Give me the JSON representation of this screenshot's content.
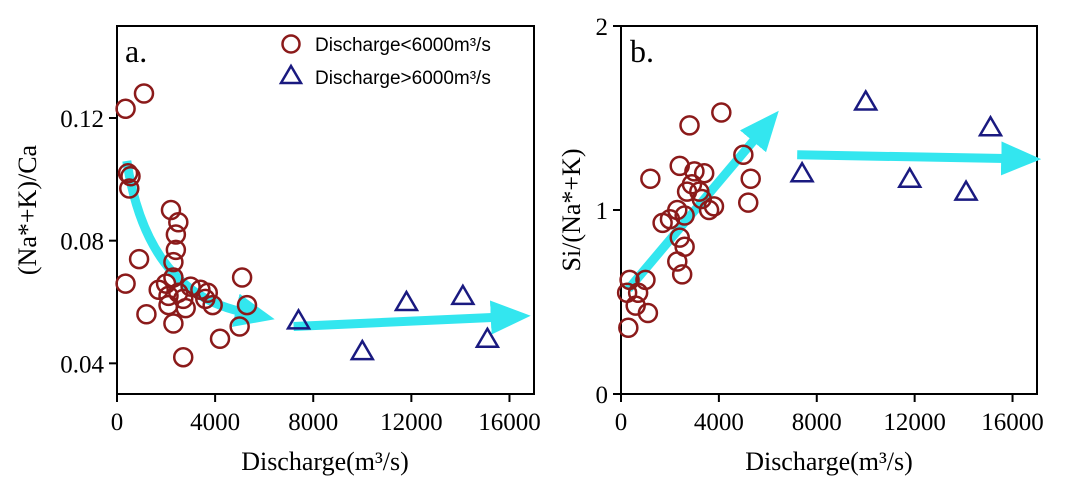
{
  "colors": {
    "low": "#8b1a1a",
    "high": "#1a1a80",
    "arrow": "#33e6ef",
    "axis": "#000000"
  },
  "legend": {
    "low_label": "Discharge<6000m³/s",
    "high_label": "Discharge>6000m³/s"
  },
  "chart_data": [
    {
      "type": "scatter",
      "panel_label": "a.",
      "xlabel": "Discharge(m³/s)",
      "ylabel": "(Na*+K)/Ca",
      "xlim": [
        0,
        17000
      ],
      "ylim": [
        0.03,
        0.15
      ],
      "xticks": [
        0,
        4000,
        8000,
        12000,
        16000
      ],
      "yticks": [
        0.04,
        0.08,
        0.12
      ],
      "ytick_labels": [
        "0.04",
        "0.08",
        "0.12"
      ],
      "grid": false,
      "legend_position": "top-right",
      "series": [
        {
          "name": "Discharge<6000m³/s",
          "marker": "circle",
          "points": [
            [
              350,
              0.123
            ],
            [
              1100,
              0.128
            ],
            [
              450,
              0.102
            ],
            [
              550,
              0.101
            ],
            [
              500,
              0.097
            ],
            [
              900,
              0.074
            ],
            [
              350,
              0.066
            ],
            [
              1200,
              0.056
            ],
            [
              1700,
              0.064
            ],
            [
              2000,
              0.066
            ],
            [
              2100,
              0.062
            ],
            [
              2200,
              0.09
            ],
            [
              2500,
              0.086
            ],
            [
              2400,
              0.082
            ],
            [
              2400,
              0.077
            ],
            [
              2300,
              0.073
            ],
            [
              2300,
              0.068
            ],
            [
              2100,
              0.059
            ],
            [
              2300,
              0.053
            ],
            [
              2500,
              0.063
            ],
            [
              2700,
              0.061
            ],
            [
              2800,
              0.058
            ],
            [
              2700,
              0.042
            ],
            [
              3400,
              0.064
            ],
            [
              3700,
              0.063
            ],
            [
              3600,
              0.061
            ],
            [
              3900,
              0.059
            ],
            [
              4200,
              0.048
            ],
            [
              5000,
              0.052
            ],
            [
              5100,
              0.068
            ],
            [
              5300,
              0.059
            ],
            [
              3000,
              0.065
            ]
          ]
        },
        {
          "name": "Discharge>6000m³/s",
          "marker": "triangle",
          "points": [
            [
              7400,
              0.054
            ],
            [
              10000,
              0.044
            ],
            [
              11800,
              0.06
            ],
            [
              14100,
              0.062
            ],
            [
              15100,
              0.048
            ]
          ]
        }
      ],
      "arrows": [
        {
          "shape": "curve",
          "from": [
            400,
            0.106
          ],
          "control": [
            1200,
            0.064
          ],
          "to": [
            5000,
            0.057
          ]
        },
        {
          "shape": "straight",
          "from": [
            7200,
            0.052
          ],
          "to": [
            15400,
            0.055
          ]
        }
      ]
    },
    {
      "type": "scatter",
      "panel_label": "b.",
      "xlabel": "Discharge(m³/s)",
      "ylabel": "Si/(Na*+K)",
      "xlim": [
        0,
        17000
      ],
      "ylim": [
        0,
        2
      ],
      "xticks": [
        0,
        4000,
        8000,
        12000,
        16000
      ],
      "yticks": [
        0,
        1,
        2
      ],
      "ytick_labels": [
        "0",
        "1",
        "2"
      ],
      "grid": false,
      "series": [
        {
          "name": "Discharge<6000m³/s",
          "marker": "circle",
          "points": [
            [
              300,
              0.36
            ],
            [
              250,
              0.55
            ],
            [
              350,
              0.62
            ],
            [
              700,
              0.55
            ],
            [
              600,
              0.48
            ],
            [
              1000,
              0.62
            ],
            [
              1100,
              0.44
            ],
            [
              1200,
              1.17
            ],
            [
              1700,
              0.93
            ],
            [
              2000,
              0.95
            ],
            [
              2300,
              1.0
            ],
            [
              2300,
              0.72
            ],
            [
              2400,
              0.85
            ],
            [
              2400,
              1.24
            ],
            [
              2500,
              0.65
            ],
            [
              2600,
              0.8
            ],
            [
              2600,
              0.97
            ],
            [
              2700,
              1.1
            ],
            [
              2800,
              1.46
            ],
            [
              2900,
              1.14
            ],
            [
              3000,
              1.21
            ],
            [
              3200,
              1.1
            ],
            [
              3400,
              1.2
            ],
            [
              3600,
              1.0
            ],
            [
              3800,
              1.02
            ],
            [
              4100,
              1.53
            ],
            [
              5000,
              1.3
            ],
            [
              5200,
              1.04
            ],
            [
              5300,
              1.17
            ],
            [
              3300,
              1.06
            ]
          ]
        },
        {
          "name": "Discharge>6000m³/s",
          "marker": "triangle",
          "points": [
            [
              7400,
              1.2
            ],
            [
              10000,
              1.59
            ],
            [
              11800,
              1.17
            ],
            [
              14100,
              1.1
            ],
            [
              15100,
              1.45
            ]
          ]
        }
      ],
      "arrows": [
        {
          "shape": "straight",
          "from": [
            300,
            0.57
          ],
          "to": [
            5500,
            1.39
          ]
        },
        {
          "shape": "straight",
          "from": [
            7200,
            1.3
          ],
          "to": [
            15700,
            1.28
          ]
        }
      ]
    }
  ]
}
